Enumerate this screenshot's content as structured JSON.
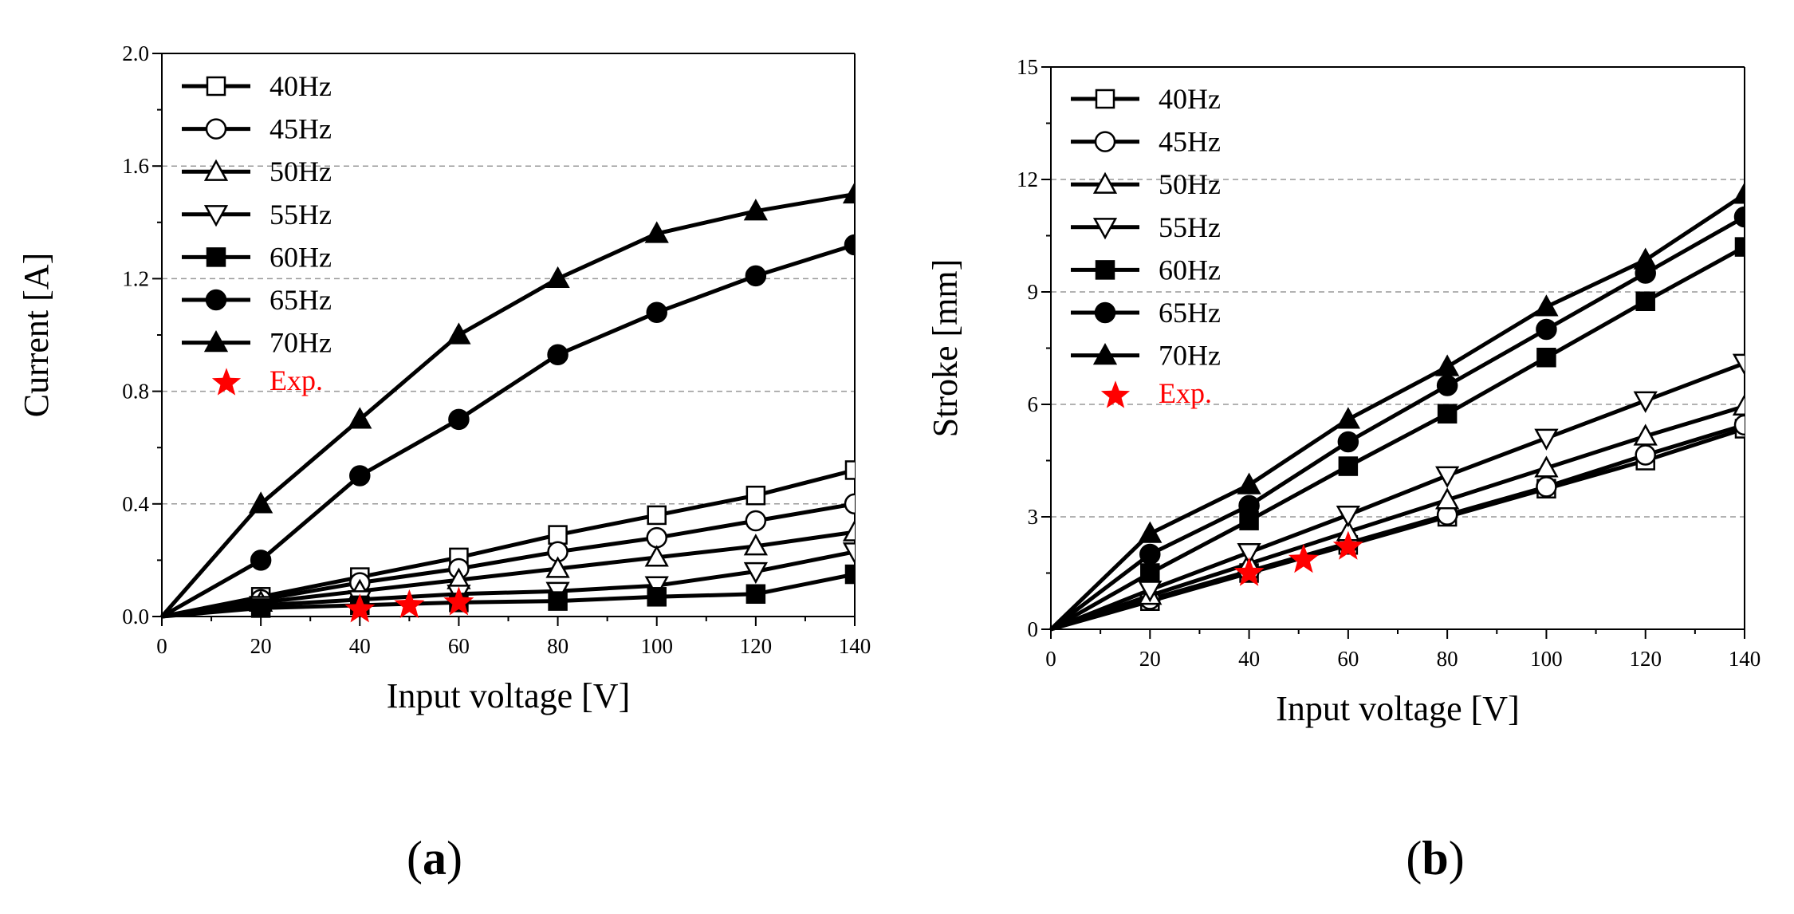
{
  "figure": {
    "panel_a_label": "a",
    "panel_b_label": "b"
  },
  "colors": {
    "line": "#000000",
    "grid": "#999999",
    "exp": "#ff0000"
  },
  "chart_data": [
    {
      "type": "line",
      "panel": "a",
      "xlabel": "Input voltage [V]",
      "ylabel": "Current [A]",
      "xlim": [
        0,
        140
      ],
      "ylim": [
        0,
        2.0
      ],
      "xticks": [
        0,
        20,
        40,
        60,
        80,
        100,
        120,
        140
      ],
      "yticks": [
        0,
        0.4,
        0.8,
        1.2,
        1.6,
        2.0
      ],
      "xtick_labels": [
        "0",
        "20",
        "40",
        "60",
        "80",
        "100",
        "120",
        "140"
      ],
      "ytick_labels": [
        "0.0",
        "0.4",
        "0.8",
        "1.2",
        "1.6",
        "2.0"
      ],
      "grid": "horizontal-dashed",
      "legend_position": "top-left",
      "x": [
        0,
        20,
        40,
        60,
        80,
        100,
        120,
        140
      ],
      "series": [
        {
          "name": "40Hz",
          "marker": "square-open",
          "values": [
            0,
            0.07,
            0.14,
            0.21,
            0.29,
            0.36,
            0.43,
            0.52
          ]
        },
        {
          "name": "45Hz",
          "marker": "circle-open",
          "values": [
            0,
            0.06,
            0.12,
            0.17,
            0.23,
            0.28,
            0.34,
            0.4
          ]
        },
        {
          "name": "50Hz",
          "marker": "triangle-up-open",
          "values": [
            0,
            0.05,
            0.09,
            0.13,
            0.17,
            0.21,
            0.25,
            0.3
          ]
        },
        {
          "name": "55Hz",
          "marker": "triangle-down-open",
          "values": [
            0,
            0.04,
            0.06,
            0.08,
            0.09,
            0.11,
            0.16,
            0.23
          ]
        },
        {
          "name": "60Hz",
          "marker": "square-filled",
          "values": [
            0,
            0.03,
            0.04,
            0.05,
            0.055,
            0.07,
            0.08,
            0.15
          ]
        },
        {
          "name": "65Hz",
          "marker": "circle-filled",
          "values": [
            0,
            0.2,
            0.5,
            0.7,
            0.93,
            1.08,
            1.21,
            1.32
          ]
        },
        {
          "name": "70Hz",
          "marker": "triangle-up-filled",
          "values": [
            0,
            0.4,
            0.7,
            1.0,
            1.2,
            1.36,
            1.44,
            1.5
          ]
        }
      ],
      "exp": {
        "name": "Exp.",
        "x": [
          40,
          50,
          60
        ],
        "values": [
          0.025,
          0.04,
          0.05
        ]
      }
    },
    {
      "type": "line",
      "panel": "b",
      "xlabel": "Input voltage [V]",
      "ylabel": "Stroke [mm]",
      "xlim": [
        0,
        140
      ],
      "ylim": [
        0,
        15
      ],
      "xticks": [
        0,
        20,
        40,
        60,
        80,
        100,
        120,
        140
      ],
      "yticks": [
        0,
        3,
        6,
        9,
        12,
        15
      ],
      "xtick_labels": [
        "0",
        "20",
        "40",
        "60",
        "80",
        "100",
        "120",
        "140"
      ],
      "ytick_labels": [
        "0",
        "3",
        "6",
        "9",
        "12",
        "15"
      ],
      "grid": "horizontal-dashed",
      "legend_position": "top-left",
      "x": [
        0,
        20,
        40,
        60,
        80,
        100,
        120,
        140
      ],
      "series": [
        {
          "name": "40Hz",
          "marker": "square-open",
          "values": [
            0,
            0.75,
            1.5,
            2.25,
            3.0,
            3.75,
            4.5,
            5.35
          ]
        },
        {
          "name": "45Hz",
          "marker": "circle-open",
          "values": [
            0,
            0.8,
            1.55,
            2.3,
            3.05,
            3.8,
            4.65,
            5.45
          ]
        },
        {
          "name": "50Hz",
          "marker": "triangle-up-open",
          "values": [
            0,
            0.9,
            1.75,
            2.6,
            3.45,
            4.3,
            5.15,
            5.95
          ]
        },
        {
          "name": "55Hz",
          "marker": "triangle-down-open",
          "values": [
            0,
            1.05,
            2.05,
            3.05,
            4.1,
            5.1,
            6.1,
            7.1
          ]
        },
        {
          "name": "60Hz",
          "marker": "square-filled",
          "values": [
            0,
            1.5,
            2.9,
            4.35,
            5.75,
            7.25,
            8.75,
            10.2
          ]
        },
        {
          "name": "65Hz",
          "marker": "circle-filled",
          "values": [
            0,
            2.0,
            3.3,
            5.0,
            6.5,
            8.0,
            9.5,
            11.0
          ]
        },
        {
          "name": "70Hz",
          "marker": "triangle-up-filled",
          "values": [
            0,
            2.55,
            3.85,
            5.6,
            7.0,
            8.6,
            9.85,
            11.6
          ]
        }
      ],
      "exp": {
        "name": "Exp.",
        "x": [
          40,
          51,
          60
        ],
        "values": [
          1.5,
          1.85,
          2.2
        ]
      }
    }
  ]
}
